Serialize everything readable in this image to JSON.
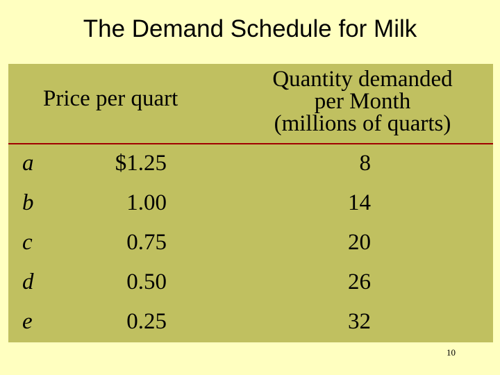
{
  "title": "The Demand Schedule for Milk",
  "headers": {
    "price": "Price per quart",
    "quantity_lines": [
      "Quantity demanded",
      "per Month",
      "(millions of quarts)"
    ]
  },
  "rows": [
    {
      "label": "a",
      "price": "$1.25",
      "quantity": "8"
    },
    {
      "label": "b",
      "price": "1.00",
      "quantity": "14"
    },
    {
      "label": "c",
      "price": "0.75",
      "quantity": "20"
    },
    {
      "label": "d",
      "price": "0.50",
      "quantity": "26"
    },
    {
      "label": "e",
      "price": "0.25",
      "quantity": "32"
    }
  ],
  "page_number": "10",
  "colors": {
    "background": "#ffffc0",
    "panel": "#c0c060",
    "rule": "#a00000"
  }
}
